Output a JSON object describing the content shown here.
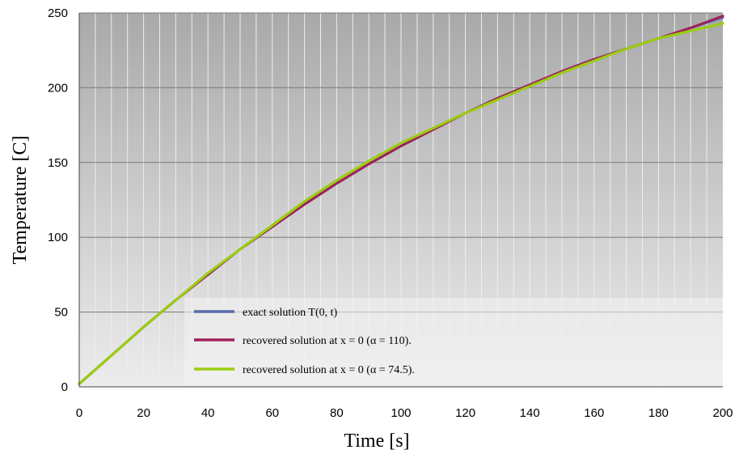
{
  "chart_data": {
    "type": "line",
    "title": "",
    "xlabel": "Time [s]",
    "ylabel": "Temperature [C]",
    "xlim": [
      0,
      200
    ],
    "ylim": [
      0,
      250
    ],
    "xticks": [
      0,
      20,
      40,
      60,
      80,
      100,
      120,
      140,
      160,
      180,
      200
    ],
    "yticks": [
      0,
      50,
      100,
      150,
      200,
      250
    ],
    "grid": true,
    "legend_position": "bottom-left",
    "x": [
      0,
      10,
      20,
      30,
      40,
      50,
      60,
      70,
      80,
      90,
      100,
      110,
      120,
      130,
      140,
      150,
      160,
      170,
      180,
      190,
      200
    ],
    "series": [
      {
        "name": "exact solution T(0, t)",
        "color": "#5a6aa8",
        "values": [
          2,
          21,
          40,
          58,
          75,
          92,
          107,
          122,
          136,
          149,
          161,
          172,
          183,
          193,
          202,
          211,
          219,
          226,
          233,
          240,
          247
        ]
      },
      {
        "name": "recovered solution at x = 0 (α = 110).",
        "color": "#a0205a",
        "values": [
          2,
          21,
          40,
          58,
          75,
          92,
          107,
          122,
          136,
          149,
          161,
          172,
          183,
          193,
          202,
          211,
          219,
          226,
          233,
          240,
          248
        ]
      },
      {
        "name": "recovered solution at x = 0 (α = 74.5).",
        "color": "#9acd10",
        "values": [
          2,
          21,
          40,
          58,
          76,
          92,
          108,
          124,
          138,
          151,
          163,
          173,
          183,
          192,
          201,
          210,
          218,
          226,
          233,
          238,
          243
        ]
      }
    ]
  }
}
